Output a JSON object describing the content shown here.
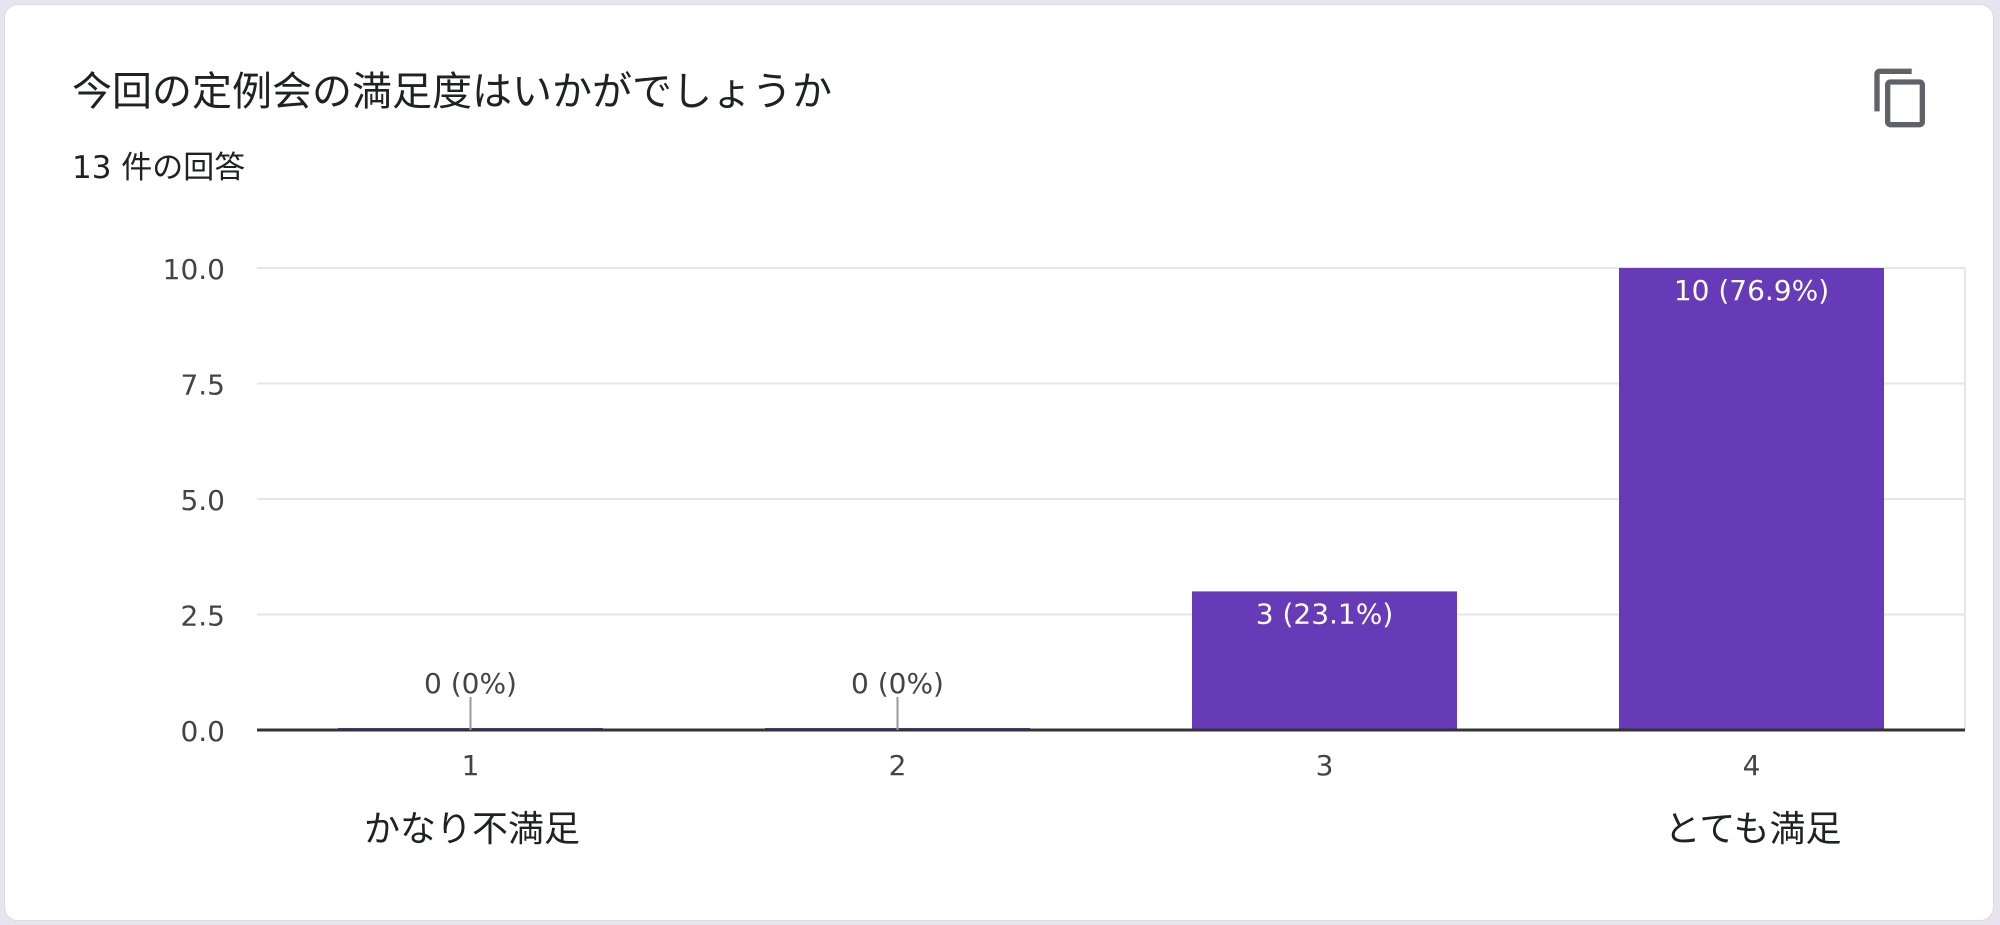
{
  "card": {
    "title": "今回の定例会の満足度はいかがでしょうか",
    "response_count": "13 件の回答",
    "copy_icon": "copy-icon"
  },
  "scale": {
    "min_label": "かなり不満足",
    "max_label": "とても満足"
  },
  "chart_data": {
    "type": "bar",
    "categories": [
      "1",
      "2",
      "3",
      "4"
    ],
    "values": [
      0,
      0,
      3,
      10
    ],
    "data_labels": [
      "0 (0%)",
      "0 (0%)",
      "3 (23.1%)",
      "10 (76.9%)"
    ],
    "ylim": [
      0,
      10
    ],
    "y_ticks": [
      "0.0",
      "2.5",
      "5.0",
      "7.5",
      "10.0"
    ],
    "y_tick_values": [
      0,
      2.5,
      5,
      7.5,
      10
    ],
    "grid": true,
    "colors": {
      "bar": "#673ab7",
      "grid": "#e6e6e6",
      "axis": "#333333",
      "tick_text": "#444444",
      "inside_label": "#ffffff",
      "outside_label": "#444444"
    }
  }
}
